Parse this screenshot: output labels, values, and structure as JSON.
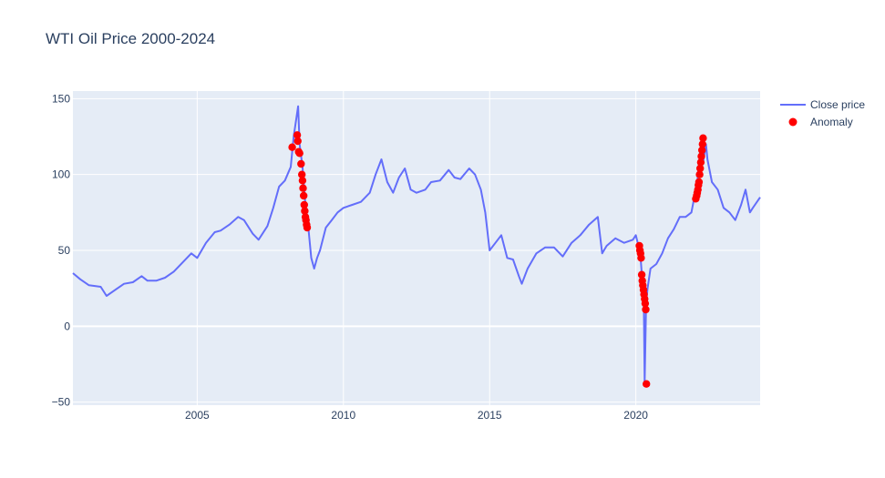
{
  "chart_data": {
    "type": "line",
    "title": "WTI Oil Price 2000-2024",
    "xlabel": "",
    "ylabel": "",
    "x_range": [
      2000.75,
      2024.25
    ],
    "ylim": [
      -52,
      155
    ],
    "x_ticks": [
      2005,
      2010,
      2015,
      2020
    ],
    "y_ticks": [
      -50,
      0,
      50,
      100,
      150
    ],
    "grid": true,
    "legend_position": "top-right",
    "colors": {
      "line": "#636efa",
      "anomaly": "#ff0000",
      "plot_bg": "#e5ecf6",
      "grid": "#ffffff",
      "text": "#2a3f5f"
    },
    "series": [
      {
        "name": "Close price",
        "type": "line",
        "x": [
          2000.75,
          2001.0,
          2001.3,
          2001.7,
          2001.9,
          2002.2,
          2002.5,
          2002.8,
          2003.1,
          2003.3,
          2003.6,
          2003.9,
          2004.2,
          2004.5,
          2004.8,
          2005.0,
          2005.3,
          2005.6,
          2005.8,
          2006.1,
          2006.4,
          2006.6,
          2006.9,
          2007.1,
          2007.4,
          2007.6,
          2007.8,
          2008.0,
          2008.2,
          2008.3,
          2008.45,
          2008.5,
          2008.6,
          2008.7,
          2008.8,
          2008.9,
          2009.0,
          2009.1,
          2009.2,
          2009.4,
          2009.6,
          2009.8,
          2010.0,
          2010.3,
          2010.6,
          2010.9,
          2011.1,
          2011.3,
          2011.5,
          2011.7,
          2011.9,
          2012.1,
          2012.3,
          2012.5,
          2012.8,
          2013.0,
          2013.3,
          2013.6,
          2013.8,
          2014.0,
          2014.3,
          2014.5,
          2014.7,
          2014.85,
          2015.0,
          2015.2,
          2015.4,
          2015.6,
          2015.8,
          2016.0,
          2016.1,
          2016.3,
          2016.6,
          2016.9,
          2017.2,
          2017.5,
          2017.8,
          2018.1,
          2018.4,
          2018.7,
          2018.85,
          2019.0,
          2019.3,
          2019.6,
          2019.9,
          2020.0,
          2020.15,
          2020.22,
          2020.27,
          2020.3,
          2020.35,
          2020.4,
          2020.5,
          2020.7,
          2020.9,
          2021.1,
          2021.3,
          2021.5,
          2021.7,
          2021.9,
          2022.0,
          2022.1,
          2022.2,
          2022.3,
          2022.4,
          2022.45,
          2022.6,
          2022.8,
          2023.0,
          2023.2,
          2023.4,
          2023.6,
          2023.75,
          2023.9,
          2024.0,
          2024.25
        ],
        "y": [
          35,
          31,
          27,
          26,
          20,
          24,
          28,
          29,
          33,
          30,
          30,
          32,
          36,
          42,
          48,
          45,
          55,
          62,
          63,
          67,
          72,
          70,
          61,
          57,
          66,
          78,
          92,
          96,
          105,
          125,
          145,
          120,
          105,
          80,
          65,
          45,
          38,
          45,
          50,
          65,
          70,
          75,
          78,
          80,
          82,
          88,
          100,
          110,
          95,
          88,
          98,
          104,
          90,
          88,
          90,
          95,
          96,
          103,
          98,
          97,
          104,
          100,
          90,
          75,
          50,
          55,
          60,
          45,
          44,
          33,
          28,
          38,
          48,
          52,
          52,
          46,
          55,
          60,
          67,
          72,
          48,
          53,
          58,
          55,
          57,
          60,
          48,
          30,
          20,
          -37,
          15,
          25,
          38,
          41,
          48,
          58,
          64,
          72,
          72,
          75,
          85,
          95,
          115,
          108,
          120,
          110,
          95,
          90,
          78,
          75,
          70,
          80,
          90,
          75,
          78,
          85
        ]
      },
      {
        "name": "Anomaly",
        "type": "scatter",
        "x": [
          2008.25,
          2008.42,
          2008.44,
          2008.47,
          2008.5,
          2008.55,
          2008.58,
          2008.6,
          2008.62,
          2008.64,
          2008.66,
          2008.68,
          2008.7,
          2008.72,
          2008.74,
          2008.76,
          2020.12,
          2020.14,
          2020.16,
          2020.18,
          2020.2,
          2020.22,
          2020.24,
          2020.26,
          2020.28,
          2020.3,
          2020.32,
          2020.34,
          2020.36,
          2022.05,
          2022.08,
          2022.1,
          2022.12,
          2022.14,
          2022.16,
          2022.18,
          2022.2,
          2022.22,
          2022.24,
          2022.26,
          2022.28,
          2022.3
        ],
        "y": [
          118,
          126,
          122,
          115,
          114,
          107,
          100,
          96,
          91,
          86,
          80,
          76,
          72,
          70,
          67,
          65,
          53,
          50,
          48,
          45,
          34,
          30,
          27,
          24,
          21,
          18,
          15,
          11,
          -38,
          84,
          86,
          88,
          90,
          93,
          95,
          100,
          104,
          108,
          112,
          116,
          120,
          124
        ]
      }
    ]
  }
}
